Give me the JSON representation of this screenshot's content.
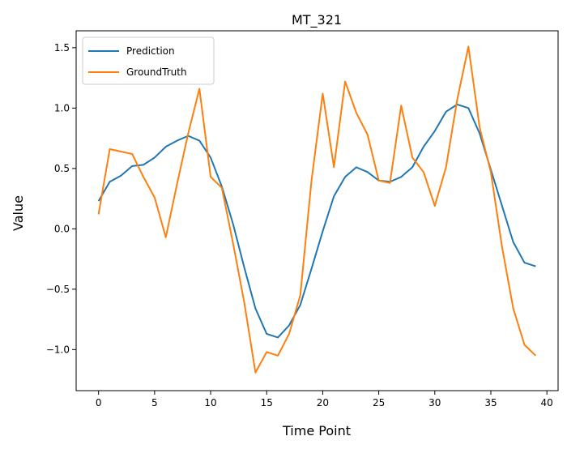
{
  "chart_data": {
    "type": "line",
    "title": "MT_321",
    "xlabel": "Time Point",
    "ylabel": "Value",
    "xlim": [
      -2,
      41
    ],
    "ylim": [
      -1.34,
      1.64
    ],
    "xticks": [
      0,
      5,
      10,
      15,
      20,
      25,
      30,
      35,
      40
    ],
    "yticks": [
      -1.0,
      -0.5,
      0.0,
      0.5,
      1.0,
      1.5
    ],
    "ytick_labels": [
      "−1.0",
      "−0.5",
      "0.0",
      "0.5",
      "1.0",
      "1.5"
    ],
    "legend_position": "upper-left",
    "grid": false,
    "x": [
      0,
      1,
      2,
      3,
      4,
      5,
      6,
      7,
      8,
      9,
      10,
      11,
      12,
      13,
      14,
      15,
      16,
      17,
      18,
      19,
      20,
      21,
      22,
      23,
      24,
      25,
      26,
      27,
      28,
      29,
      30,
      31,
      32,
      33,
      34,
      35,
      36,
      37,
      38,
      39
    ],
    "series": [
      {
        "name": "Prediction",
        "color": "#1f77b4",
        "values": [
          0.23,
          0.39,
          0.44,
          0.52,
          0.53,
          0.59,
          0.68,
          0.73,
          0.77,
          0.73,
          0.59,
          0.35,
          0.04,
          -0.32,
          -0.66,
          -0.87,
          -0.9,
          -0.8,
          -0.63,
          -0.33,
          -0.02,
          0.27,
          0.43,
          0.51,
          0.47,
          0.4,
          0.39,
          0.43,
          0.51,
          0.68,
          0.81,
          0.97,
          1.03,
          1.0,
          0.79,
          0.49,
          0.19,
          -0.11,
          -0.28,
          -0.31
        ]
      },
      {
        "name": "GroundTruth",
        "color": "#ff7f0e",
        "values": [
          0.12,
          0.66,
          0.64,
          0.62,
          0.43,
          0.26,
          -0.07,
          0.37,
          0.79,
          1.16,
          0.43,
          0.34,
          -0.12,
          -0.61,
          -1.19,
          -1.02,
          -1.05,
          -0.87,
          -0.55,
          0.4,
          1.12,
          0.51,
          1.22,
          0.96,
          0.78,
          0.4,
          0.38,
          1.02,
          0.59,
          0.47,
          0.19,
          0.51,
          1.07,
          1.51,
          0.84,
          0.47,
          -0.15,
          -0.66,
          -0.96,
          -1.05
        ]
      }
    ]
  }
}
